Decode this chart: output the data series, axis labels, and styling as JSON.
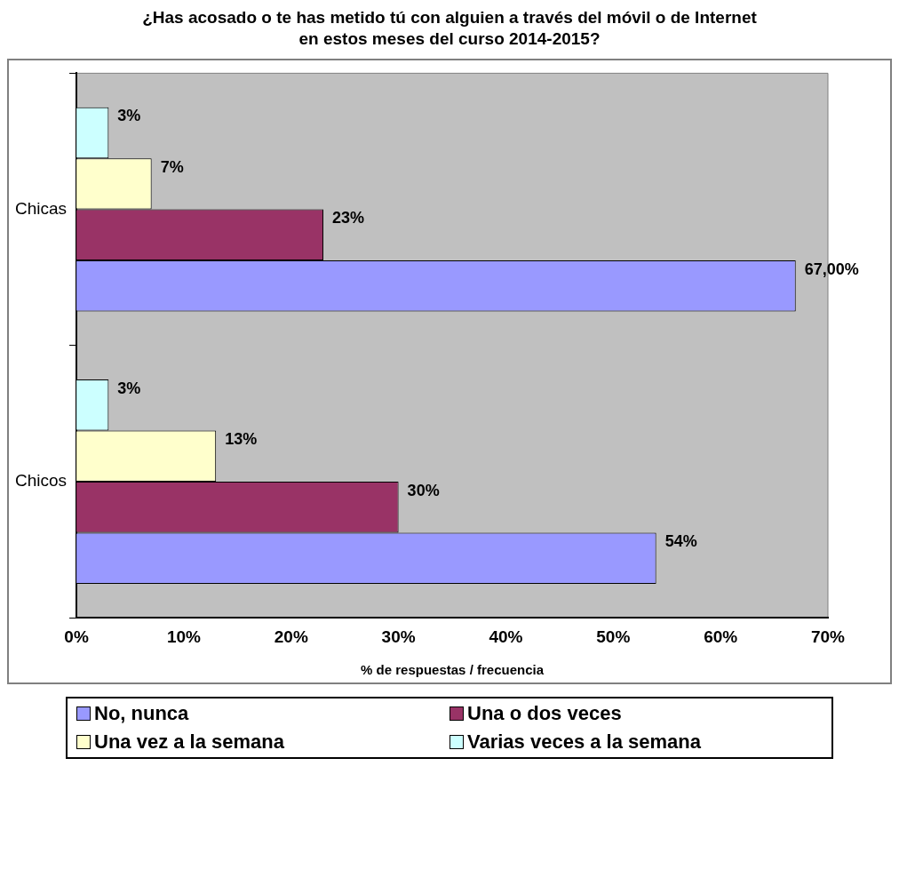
{
  "chart_data": {
    "type": "bar",
    "orientation": "horizontal",
    "title": "¿Has acosado o te has metido tú con alguien a través del móvil o de Internet en estos meses del curso 2014-2015?",
    "xlabel": "% de respuestas / frecuencia",
    "categories": [
      "Chicas",
      "Chicos"
    ],
    "series": [
      {
        "name": "No, nunca",
        "color": "#9999ff",
        "values": [
          67,
          54
        ],
        "value_labels": [
          "67,00%",
          "54%"
        ]
      },
      {
        "name": "Una o dos veces",
        "color": "#993366",
        "values": [
          23,
          30
        ],
        "value_labels": [
          "23%",
          "30%"
        ]
      },
      {
        "name": "Una vez a la semana",
        "color": "#ffffcc",
        "values": [
          7,
          13
        ],
        "value_labels": [
          "7%",
          "13%"
        ]
      },
      {
        "name": "Varias veces a la semana",
        "color": "#ccffff",
        "values": [
          3,
          3
        ],
        "value_labels": [
          "3%",
          "3%"
        ]
      }
    ],
    "xlim": [
      0,
      70
    ],
    "xticks": [
      {
        "value": 0,
        "label": "0%"
      },
      {
        "value": 10,
        "label": "10%"
      },
      {
        "value": 20,
        "label": "20%"
      },
      {
        "value": 30,
        "label": "30%"
      },
      {
        "value": 40,
        "label": "40%"
      },
      {
        "value": 50,
        "label": "50%"
      },
      {
        "value": 60,
        "label": "60%"
      },
      {
        "value": 70,
        "label": "70%"
      }
    ],
    "grid": false,
    "legend": "bottom"
  }
}
